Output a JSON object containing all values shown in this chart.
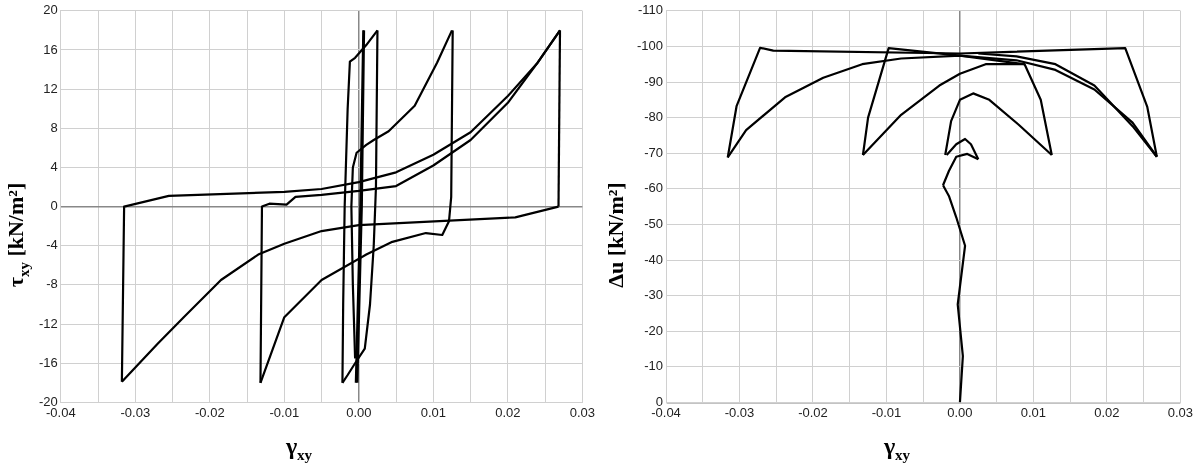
{
  "chart_data": [
    {
      "type": "line",
      "xlabel": "γ$_{xy}$",
      "ylabel": "τ$_{xy}$ [kN/m²]",
      "grid": true,
      "xlim": [
        -0.04,
        0.03
      ],
      "xticks": [
        -0.04,
        {
          "value": -0.035,
          "label": null
        },
        -0.03,
        {
          "value": -0.025,
          "label": null
        },
        -0.02,
        {
          "value": -0.015,
          "label": null
        },
        -0.01,
        {
          "value": -0.005,
          "label": null
        },
        {
          "value": 0,
          "label": "0.00"
        },
        {
          "value": 0.005,
          "label": null
        },
        0.01,
        {
          "value": 0.015,
          "label": null
        },
        0.02,
        {
          "value": 0.025,
          "label": null
        },
        0.03
      ],
      "ylim": [
        -20,
        20
      ],
      "yticks": [
        -20,
        -16,
        -12,
        -8,
        -4,
        0,
        4,
        8,
        12,
        16,
        20
      ],
      "series": [
        {
          "color": "#000000",
          "x": [
            0.027,
            0.0268
          ],
          "values": [
            18,
            0
          ]
        },
        {
          "color": "#000000",
          "x": [
            0.0268,
            0.021,
            0.0,
            -0.005,
            -0.01,
            -0.0135,
            -0.0185,
            -0.0235,
            -0.027,
            -0.0318
          ],
          "values": [
            0,
            -1.1,
            -1.9,
            -2.5,
            -3.8,
            -4.9,
            -7.5,
            -11.3,
            -14,
            -17.9
          ]
        },
        {
          "color": "#000000",
          "x": [
            -0.0318,
            -0.0315,
            -0.0255,
            -0.01,
            -0.005,
            0,
            0.005,
            0.01,
            0.015,
            0.02,
            0.024,
            0.027
          ],
          "values": [
            -17.9,
            0,
            1.1,
            1.5,
            1.8,
            2.5,
            3.5,
            5.3,
            7.6,
            11.3,
            14.7,
            18
          ]
        },
        {
          "color": "#000000",
          "x": [
            -0.0132,
            -0.013,
            -0.012,
            -0.0097,
            -0.0085,
            -0.005,
            0,
            0.005,
            0.01,
            0.015,
            0.02,
            0.024,
            0.027
          ],
          "values": [
            -18,
            0,
            0.3,
            0.2,
            1.0,
            1.2,
            1.6,
            2.1,
            4.2,
            6.8,
            10.6,
            14.7,
            18
          ]
        },
        {
          "color": "#000000",
          "x": [
            0.0126,
            0.0124,
            0.0121,
            0.0112,
            0.009,
            0.0045,
            0.001,
            -0.005,
            -0.01,
            -0.0132
          ],
          "values": [
            18,
            1,
            -1.5,
            -2.9,
            -2.7,
            -3.6,
            -4.9,
            -7.5,
            -11.3,
            -18
          ]
        },
        {
          "color": "#000000",
          "x": [
            -0.0005,
            -0.0008,
            -0.001,
            -0.0008,
            -0.0003,
            0.001,
            0.002,
            0.004,
            0.0075,
            0.0105,
            0.0125
          ],
          "values": [
            -15.5,
            -8,
            0,
            4,
            5.5,
            6.3,
            6.8,
            7.7,
            10.3,
            14.7,
            18
          ]
        },
        {
          "color": "#000000",
          "x": [
            0.0025,
            0.0023,
            0.002,
            0.0015,
            0.0008,
            -0.0005,
            -0.0015,
            -0.0022
          ],
          "values": [
            18,
            2,
            -4,
            -10,
            -14.5,
            -16,
            -17.2,
            -18
          ]
        },
        {
          "color": "#000000",
          "x": [
            -0.0022,
            -0.0021,
            -0.0019,
            -0.0015,
            -0.0012,
            -0.0005,
            0.001,
            0.0025
          ],
          "values": [
            -18,
            -10,
            0,
            10,
            14.8,
            15.2,
            16.5,
            18
          ]
        },
        {
          "color": "#000000",
          "x": [
            -0.0004,
            0.0002,
            0.0006
          ],
          "values": [
            -18,
            0,
            18
          ]
        },
        {
          "color": "#000000",
          "x": [
            0.0007,
            0.0004,
            -0.0002
          ],
          "values": [
            18,
            0,
            -18
          ]
        }
      ]
    },
    {
      "type": "line",
      "xlabel": "γ$_{xy}$",
      "ylabel": "Δu [kN/m²]",
      "grid": true,
      "xlim": [
        -0.04,
        0.03
      ],
      "xticks": [
        -0.04,
        {
          "value": -0.035,
          "label": null
        },
        -0.03,
        {
          "value": -0.025,
          "label": null
        },
        -0.02,
        {
          "value": -0.015,
          "label": null
        },
        -0.01,
        {
          "value": -0.005,
          "label": null
        },
        {
          "value": 0,
          "label": "0.00"
        },
        {
          "value": 0.005,
          "label": null
        },
        0.01,
        {
          "value": 0.015,
          "label": null
        },
        0.02,
        {
          "value": 0.025,
          "label": null
        },
        0.03
      ],
      "ylim": [
        0,
        -110
      ],
      "yticks": [
        0,
        -10,
        -20,
        -30,
        -40,
        -50,
        -60,
        -70,
        -80,
        -90,
        -100,
        -110
      ],
      "series": [
        {
          "color": "#000000",
          "x": [
            0,
            0.0004,
            -0.0003,
            0.0007,
            -0.0005,
            -0.0015,
            -0.0023
          ],
          "values": [
            0,
            -13,
            -27.5,
            -44,
            -52,
            -58,
            -61
          ]
        },
        {
          "color": "#000000",
          "x": [
            -0.0023,
            -0.0015,
            -0.0005,
            0.001,
            0.0025
          ],
          "values": [
            -61,
            -65,
            -69,
            -69.8,
            -68.3
          ]
        },
        {
          "color": "#000000",
          "x": [
            0.0025,
            0.0015,
            0.0007,
            -0.0005,
            -0.0018
          ],
          "values": [
            -68.3,
            -72.5,
            -74,
            -72.5,
            -69.5
          ]
        },
        {
          "color": "#000000",
          "x": [
            -0.002,
            -0.0012,
            0,
            0.0018,
            0.004,
            0.008,
            0.0125
          ],
          "values": [
            -69.5,
            -79,
            -85,
            -86.8,
            -85,
            -78,
            -69.5
          ]
        },
        {
          "color": "#000000",
          "x": [
            0.0125,
            0.011,
            0.0088,
            0.0035,
            0,
            -0.0028,
            -0.008,
            -0.0132
          ],
          "values": [
            -69.5,
            -85,
            -95,
            -95,
            -92.3,
            -89,
            -80.8,
            -69.5
          ]
        },
        {
          "color": "#000000",
          "x": [
            -0.0132,
            -0.0125,
            -0.0097,
            0,
            0.0088
          ],
          "values": [
            -69.5,
            -80,
            -99.5,
            -97.4,
            -95
          ]
        },
        {
          "color": "#000000",
          "x": [
            -0.0316,
            -0.0304,
            -0.0272,
            -0.0254,
            0,
            0.0225,
            0.0255,
            0.0268
          ],
          "values": [
            -68.8,
            -83.2,
            -99.6,
            -98.8,
            -98,
            -99.5,
            -83,
            -69
          ]
        },
        {
          "color": "#000000",
          "x": [
            0.0268,
            0.0235,
            0.0183,
            0.013,
            0.0077,
            0,
            -0.008,
            -0.0133,
            -0.0186,
            -0.0238,
            -0.0291,
            -0.0316
          ],
          "values": [
            -69,
            -78.6,
            -87.9,
            -93.4,
            -96.1,
            -97.4,
            -96.6,
            -95,
            -91.2,
            -85.7,
            -76.5,
            -68.8
          ]
        },
        {
          "color": "#000000",
          "x": [
            0.0268,
            0.0235,
            0.0183,
            0.013,
            0.0077,
            0.0025
          ],
          "values": [
            -69,
            -77.6,
            -89,
            -95,
            -97.2,
            -98
          ]
        }
      ]
    }
  ]
}
